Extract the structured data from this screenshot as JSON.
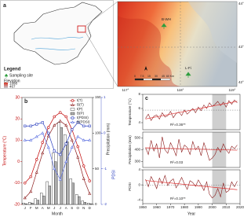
{
  "panel_a": {
    "label": "a",
    "legend_title": "Legend",
    "site_label": "Sampling site",
    "elevation_label": "Elevation",
    "elev_high": 1998,
    "elev_low": 467
  },
  "map": {
    "lat_labels": [
      "44°",
      "43°",
      "42°"
    ],
    "lon_labels": [
      "117°",
      "118°",
      "119°"
    ],
    "sites": [
      "B-WH",
      "L-Fi"
    ],
    "scale": [
      "0",
      "7.5",
      "15",
      "30",
      "45",
      "60 Km"
    ]
  },
  "chart_data": [
    {
      "type": "line",
      "panel_label": "b",
      "x_label": "Month",
      "y_label": "Temperature (°C)",
      "y2_label": "Precipitation (mm)",
      "y3_label": "PDSI",
      "categories": [
        "J",
        "F",
        "M",
        "A",
        "M",
        "J",
        "J",
        "A",
        "S",
        "O",
        "N",
        "D"
      ],
      "ylim": [
        -20,
        30
      ],
      "yticks": [
        -20,
        -10,
        0,
        10,
        20,
        30
      ],
      "y2lim": [
        0,
        150
      ],
      "y2ticks": [
        0,
        50,
        100,
        150
      ],
      "y3lim": [
        -2,
        1
      ],
      "y3ticks": [
        -2,
        -1,
        0,
        1
      ],
      "series": [
        {
          "name": "t(T)",
          "type": "line",
          "marker": "circle",
          "color": "#c00000",
          "values": [
            -10,
            -7,
            1,
            9,
            16,
            21,
            23,
            21,
            15,
            7,
            -2,
            -9
          ]
        },
        {
          "name": "B(T)",
          "type": "line",
          "marker": "triangle",
          "color": "#8b1a1a",
          "values": [
            -17,
            -14,
            -5,
            4,
            12,
            17,
            19,
            17,
            10,
            2,
            -8,
            -15
          ]
        },
        {
          "name": "t(P)",
          "type": "bar",
          "axis": "y2",
          "color": "#ffffff",
          "values": [
            2,
            3,
            8,
            16,
            32,
            72,
            115,
            98,
            36,
            14,
            5,
            2
          ]
        },
        {
          "name": "B(P)",
          "type": "bar",
          "axis": "y2",
          "color": "#b0b0b0",
          "values": [
            1,
            2,
            6,
            12,
            26,
            60,
            108,
            88,
            30,
            11,
            3,
            1
          ]
        },
        {
          "name": "t(PDSI)",
          "type": "line",
          "axis": "y3",
          "marker": "square",
          "color": "#2b3fbf",
          "values": [
            0.2,
            0.2,
            0.25,
            0.3,
            0,
            -0.5,
            -0.6,
            -0.3,
            0.1,
            0.3,
            0.2,
            0.2
          ]
        },
        {
          "name": "B(PDSI)",
          "type": "line",
          "axis": "y3",
          "marker": "triangle",
          "color": "#5a6ee0",
          "values": [
            -0.2,
            -0.2,
            -0.1,
            0,
            -0.4,
            -1,
            -1.3,
            -0.8,
            -0.4,
            -0.1,
            -0.2,
            -0.2
          ]
        }
      ]
    },
    {
      "type": "line",
      "panel_label": "c",
      "y_label": "Temperature (°C)",
      "annotation": "R²=0.36**",
      "color": "#8b1a1a",
      "xlim": [
        1950,
        2020
      ],
      "shade_x": [
        2000,
        2010
      ],
      "ylim": [
        3,
        8
      ],
      "yticks": [
        4,
        6,
        8
      ],
      "x": [
        1952,
        1954,
        1956,
        1958,
        1960,
        1962,
        1964,
        1966,
        1968,
        1970,
        1972,
        1974,
        1976,
        1978,
        1980,
        1982,
        1984,
        1986,
        1988,
        1990,
        1992,
        1994,
        1996,
        1998,
        2000,
        2002,
        2004,
        2006,
        2008,
        2010,
        2012,
        2014,
        2016,
        2018
      ],
      "values": [
        4.6,
        5.2,
        4.3,
        4.9,
        5.1,
        4.5,
        5.4,
        4.8,
        5.0,
        5.6,
        4.7,
        5.3,
        5.5,
        5.0,
        5.8,
        5.2,
        5.6,
        6.0,
        5.4,
        6.2,
        5.7,
        6.5,
        6.0,
        6.8,
        6.3,
        6.6,
        7.0,
        6.4,
        6.9,
        6.2,
        7.1,
        6.6,
        7.2,
        6.8
      ]
    },
    {
      "type": "line",
      "y_label": "Precipitation (mm)",
      "annotation": "R²=0.03",
      "color": "#8b1a1a",
      "xlim": [
        1950,
        2020
      ],
      "shade_x": [
        2000,
        2010
      ],
      "ylim": [
        250,
        550
      ],
      "yticks": [
        300,
        400,
        500
      ],
      "x": [
        1952,
        1954,
        1956,
        1958,
        1960,
        1962,
        1964,
        1966,
        1968,
        1970,
        1972,
        1974,
        1976,
        1978,
        1980,
        1982,
        1984,
        1986,
        1988,
        1990,
        1992,
        1994,
        1996,
        1998,
        2000,
        2002,
        2004,
        2006,
        2008,
        2010,
        2012,
        2014,
        2016,
        2018
      ],
      "values": [
        420,
        360,
        480,
        390,
        450,
        330,
        510,
        400,
        370,
        460,
        410,
        350,
        490,
        380,
        440,
        420,
        360,
        470,
        400,
        430,
        350,
        460,
        390,
        310,
        330,
        360,
        420,
        380,
        450,
        400,
        370,
        430,
        410,
        440
      ]
    },
    {
      "type": "line",
      "y_label": "PDSI",
      "annotation": "R²=0.10**",
      "x_label": "Year",
      "color": "#8b1a1a",
      "xlim": [
        1950,
        2020
      ],
      "shade_x": [
        2000,
        2010
      ],
      "ylim": [
        -5,
        4
      ],
      "yticks": [
        -4,
        0,
        4
      ],
      "xticks": [
        1950,
        1960,
        1970,
        1980,
        1990,
        2000,
        2010,
        2020
      ],
      "x": [
        1952,
        1954,
        1956,
        1958,
        1960,
        1962,
        1964,
        1966,
        1968,
        1970,
        1972,
        1974,
        1976,
        1978,
        1980,
        1982,
        1984,
        1986,
        1988,
        1990,
        1992,
        1994,
        1996,
        1998,
        2000,
        2002,
        2004,
        2006,
        2008,
        2010,
        2012,
        2014,
        2016,
        2018
      ],
      "values": [
        1.5,
        -0.5,
        2.2,
        0.8,
        -1.0,
        1.8,
        0.3,
        2.5,
        -0.2,
        1.0,
        1.6,
        -0.8,
        0.5,
        2.0,
        0.2,
        -1.2,
        1.1,
        0.6,
        -0.4,
        1.3,
        0.0,
        -1.5,
        0.8,
        -2.5,
        -3.5,
        -2.8,
        -1.0,
        -3.2,
        0.5,
        -2.0,
        -1.5,
        0.8,
        -0.5,
        1.0
      ]
    }
  ]
}
